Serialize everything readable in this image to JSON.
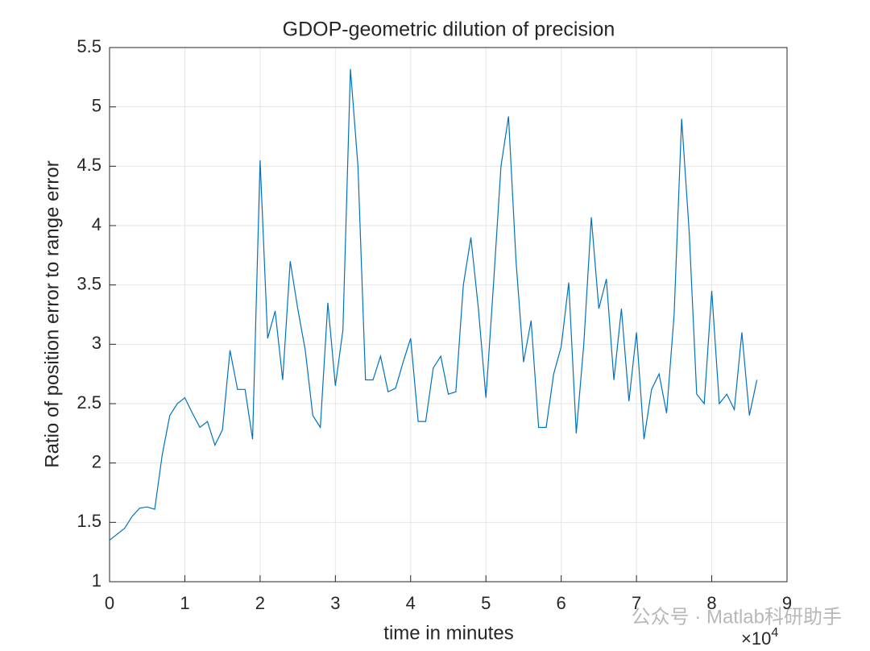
{
  "chart_data": {
    "type": "line",
    "title": "GDOP-geometric dilution of precision",
    "xlabel": "time in minutes",
    "ylabel": "Ratio of position error to range error",
    "x_exponent": {
      "base": "×10",
      "power": "4"
    },
    "watermark": "公众号 · Matlab科研助手",
    "x": [
      0,
      1000,
      2000,
      3000,
      4000,
      5000,
      6000,
      7000,
      8000,
      9000,
      10000,
      11000,
      12000,
      13000,
      14000,
      15000,
      16000,
      17000,
      18000,
      19000,
      20000,
      21000,
      22000,
      23000,
      24000,
      25000,
      26000,
      27000,
      28000,
      29000,
      30000,
      31000,
      32000,
      33000,
      34000,
      35000,
      36000,
      37000,
      38000,
      39000,
      40000,
      41000,
      42000,
      43000,
      44000,
      45000,
      46000,
      47000,
      48000,
      49000,
      50000,
      51000,
      52000,
      53000,
      54000,
      55000,
      56000,
      57000,
      58000,
      59000,
      60000,
      61000,
      62000,
      63000,
      64000,
      65000,
      66000,
      67000,
      68000,
      69000,
      70000,
      71000,
      72000,
      73000,
      74000,
      75000,
      76000,
      77000,
      78000,
      79000,
      80000,
      81000,
      82000,
      83000,
      84000,
      85000,
      86000
    ],
    "series": [
      {
        "name": "GDOP",
        "color": "#0072bd",
        "values": [
          1.35,
          1.4,
          1.45,
          1.55,
          1.62,
          1.63,
          1.61,
          2.07,
          2.4,
          2.5,
          2.55,
          2.42,
          2.3,
          2.35,
          2.15,
          2.28,
          2.95,
          2.62,
          2.62,
          2.2,
          4.55,
          3.05,
          3.28,
          2.7,
          3.7,
          3.3,
          2.95,
          2.4,
          2.3,
          3.35,
          2.65,
          3.12,
          5.32,
          4.5,
          2.7,
          2.7,
          2.9,
          2.6,
          2.63,
          2.85,
          3.05,
          2.35,
          2.35,
          2.8,
          2.9,
          2.58,
          2.6,
          3.5,
          3.9,
          3.3,
          2.55,
          3.5,
          4.5,
          4.92,
          3.7,
          2.85,
          3.2,
          2.3,
          2.3,
          2.75,
          2.98,
          3.52,
          2.25,
          3.0,
          4.07,
          3.3,
          3.55,
          2.7,
          3.3,
          2.52,
          3.1,
          2.2,
          2.62,
          2.75,
          2.42,
          3.25,
          4.9,
          3.95,
          2.58,
          2.5,
          3.45,
          2.5,
          2.58,
          2.45,
          3.1,
          2.4,
          2.7
        ]
      }
    ],
    "xlim": [
      0,
      90000
    ],
    "xticks": [
      0,
      {
        "value": 10000,
        "label": "1"
      },
      {
        "value": 20000,
        "label": "2"
      },
      {
        "value": 30000,
        "label": "3"
      },
      {
        "value": 40000,
        "label": "4"
      },
      {
        "value": 50000,
        "label": "5"
      },
      {
        "value": 60000,
        "label": "6"
      },
      {
        "value": 70000,
        "label": "7"
      },
      {
        "value": 80000,
        "label": "8"
      },
      {
        "value": 90000,
        "label": "9"
      }
    ],
    "ylim": [
      1,
      5.5
    ],
    "yticks": [
      1,
      1.5,
      2,
      2.5,
      3,
      3.5,
      4,
      4.5,
      5,
      5.5
    ],
    "grid": true
  }
}
